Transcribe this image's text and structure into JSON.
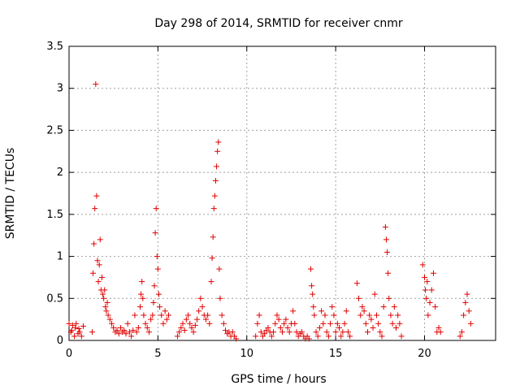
{
  "chart_data": {
    "type": "scatter",
    "title": "Day 298 of 2014, SRMTID for receiver cnmr",
    "xlabel": "GPS time / hours",
    "ylabel": "SRMTID / TECUs",
    "xlim": [
      0,
      24
    ],
    "ylim": [
      0,
      3.5
    ],
    "xticks": [
      0,
      5,
      10,
      15,
      20
    ],
    "xtick_labels": [
      "0",
      "5",
      "10",
      "15",
      "20"
    ],
    "yticks": [
      0,
      0.5,
      1,
      1.5,
      2,
      2.5,
      3,
      3.5
    ],
    "ytick_labels": [
      "0",
      "0.5",
      "1",
      "1.5",
      "2",
      "2.5",
      "3",
      "3.5"
    ],
    "grid": true,
    "legend": "none",
    "marker": "+",
    "color": "#e00000",
    "x": [
      0.0,
      0.1,
      0.15,
      0.2,
      0.3,
      0.35,
      0.4,
      0.5,
      0.55,
      0.6,
      0.7,
      0.8,
      1.3,
      1.35,
      1.4,
      1.45,
      1.5,
      1.55,
      1.6,
      1.65,
      1.7,
      1.75,
      1.8,
      1.85,
      1.9,
      1.95,
      2.0,
      2.05,
      2.1,
      2.15,
      2.2,
      2.3,
      2.4,
      2.5,
      2.6,
      2.7,
      2.8,
      2.9,
      3.0,
      3.1,
      3.2,
      3.3,
      3.4,
      3.5,
      3.6,
      3.7,
      3.8,
      3.9,
      4.0,
      4.05,
      4.1,
      4.15,
      4.2,
      4.3,
      4.4,
      4.5,
      4.6,
      4.7,
      4.75,
      4.8,
      4.85,
      4.9,
      4.95,
      5.0,
      5.05,
      5.1,
      5.2,
      5.3,
      5.4,
      5.5,
      5.6,
      6.1,
      6.2,
      6.3,
      6.4,
      6.5,
      6.6,
      6.7,
      6.8,
      6.9,
      7.0,
      7.1,
      7.2,
      7.3,
      7.4,
      7.5,
      7.6,
      7.7,
      7.8,
      7.9,
      8.0,
      8.05,
      8.1,
      8.15,
      8.2,
      8.25,
      8.3,
      8.35,
      8.4,
      8.45,
      8.5,
      8.6,
      8.7,
      8.8,
      8.9,
      9.0,
      9.1,
      9.2,
      9.3,
      9.4,
      10.5,
      10.6,
      10.7,
      10.8,
      10.9,
      11.0,
      11.1,
      11.2,
      11.3,
      11.4,
      11.5,
      11.6,
      11.7,
      11.8,
      11.9,
      12.0,
      12.1,
      12.2,
      12.3,
      12.4,
      12.5,
      12.6,
      12.7,
      12.8,
      12.9,
      13.0,
      13.1,
      13.2,
      13.3,
      13.4,
      13.5,
      13.6,
      13.65,
      13.7,
      13.75,
      13.8,
      13.9,
      14.0,
      14.1,
      14.2,
      14.3,
      14.4,
      14.5,
      14.6,
      14.7,
      14.8,
      14.9,
      15.0,
      15.1,
      15.2,
      15.3,
      15.4,
      15.5,
      15.6,
      15.7,
      15.8,
      16.2,
      16.3,
      16.4,
      16.5,
      16.6,
      16.7,
      16.8,
      16.9,
      17.0,
      17.1,
      17.2,
      17.3,
      17.4,
      17.5,
      17.6,
      17.7,
      17.8,
      17.85,
      17.9,
      17.95,
      18.0,
      18.1,
      18.2,
      18.3,
      18.4,
      18.5,
      18.6,
      18.7,
      19.9,
      20.0,
      20.05,
      20.1,
      20.15,
      20.2,
      20.3,
      20.4,
      20.5,
      20.6,
      20.7,
      20.8,
      20.9,
      22.0,
      22.1,
      22.2,
      22.3,
      22.4,
      22.5,
      22.6
    ],
    "y": [
      0.2,
      0.1,
      0.12,
      0.18,
      0.05,
      0.15,
      0.2,
      0.08,
      0.14,
      0.1,
      0.05,
      0.17,
      0.1,
      0.8,
      1.15,
      1.57,
      3.05,
      1.72,
      0.95,
      0.7,
      0.9,
      1.2,
      0.6,
      0.75,
      0.55,
      0.5,
      0.6,
      0.4,
      0.35,
      0.45,
      0.3,
      0.25,
      0.2,
      0.15,
      0.1,
      0.12,
      0.08,
      0.15,
      0.1,
      0.12,
      0.08,
      0.2,
      0.1,
      0.05,
      0.12,
      0.3,
      0.1,
      0.15,
      0.4,
      0.55,
      0.7,
      0.5,
      0.3,
      0.2,
      0.15,
      0.1,
      0.25,
      0.3,
      0.45,
      0.65,
      1.28,
      1.57,
      1.0,
      0.85,
      0.55,
      0.4,
      0.3,
      0.2,
      0.35,
      0.25,
      0.3,
      0.05,
      0.1,
      0.15,
      0.2,
      0.12,
      0.25,
      0.3,
      0.2,
      0.15,
      0.1,
      0.18,
      0.25,
      0.35,
      0.5,
      0.4,
      0.3,
      0.25,
      0.3,
      0.2,
      0.7,
      0.98,
      1.23,
      1.57,
      1.72,
      1.9,
      2.07,
      2.25,
      2.36,
      0.85,
      0.5,
      0.3,
      0.2,
      0.12,
      0.08,
      0.1,
      0.05,
      0.1,
      0.05,
      0.02,
      0.05,
      0.2,
      0.3,
      0.1,
      0.05,
      0.08,
      0.12,
      0.15,
      0.1,
      0.05,
      0.1,
      0.2,
      0.3,
      0.25,
      0.15,
      0.1,
      0.2,
      0.25,
      0.15,
      0.1,
      0.2,
      0.35,
      0.2,
      0.1,
      0.05,
      0.08,
      0.1,
      0.05,
      0.02,
      0.05,
      0.02,
      0.85,
      0.65,
      0.55,
      0.4,
      0.3,
      0.1,
      0.05,
      0.15,
      0.35,
      0.2,
      0.3,
      0.1,
      0.05,
      0.2,
      0.4,
      0.3,
      0.1,
      0.2,
      0.15,
      0.05,
      0.1,
      0.2,
      0.35,
      0.1,
      0.05,
      0.68,
      0.5,
      0.3,
      0.4,
      0.35,
      0.2,
      0.1,
      0.3,
      0.25,
      0.15,
      0.55,
      0.3,
      0.2,
      0.1,
      0.05,
      0.4,
      1.35,
      1.2,
      1.05,
      0.8,
      0.5,
      0.3,
      0.2,
      0.4,
      0.15,
      0.3,
      0.2,
      0.05,
      0.9,
      0.75,
      0.6,
      0.5,
      0.7,
      0.3,
      0.45,
      0.6,
      0.8,
      0.4,
      0.1,
      0.15,
      0.1,
      0.05,
      0.1,
      0.3,
      0.45,
      0.55,
      0.35,
      0.2
    ]
  }
}
